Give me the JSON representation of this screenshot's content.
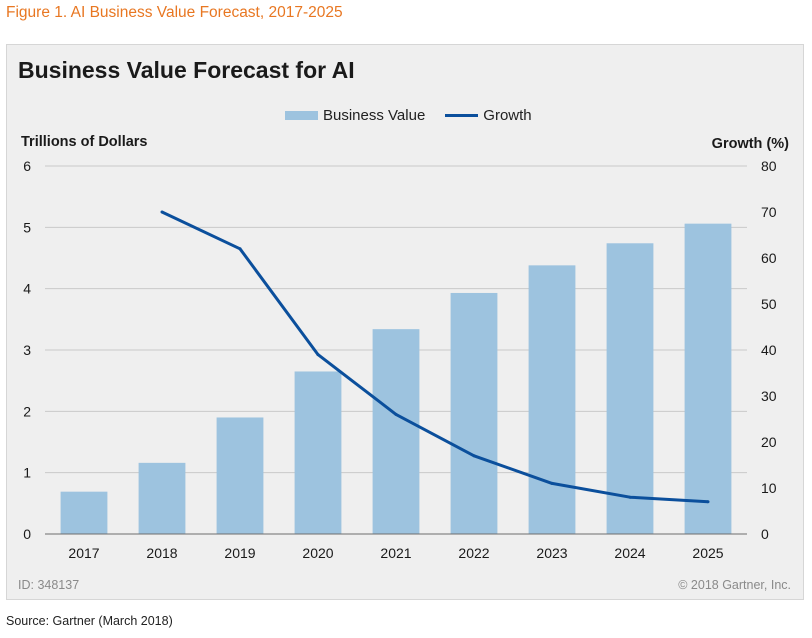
{
  "figure_caption": "Figure 1. AI Business Value Forecast, 2017-2025",
  "footer": {
    "id_text": "ID: 348137",
    "copyright": "© 2018 Gartner, Inc.",
    "source": "Source: Gartner (March 2018)"
  },
  "colors": {
    "bar": "#9dc3df",
    "line": "#0b4f9c",
    "caption": "#e87722",
    "panel": "#efefef"
  },
  "chart_data": {
    "type": "bar",
    "title": "Business Value Forecast for AI",
    "ylabel": "Trillions of Dollars",
    "y2label": "Growth (%)",
    "xlabel": "",
    "legend_position": "top-center",
    "categories": [
      "2017",
      "2018",
      "2019",
      "2020",
      "2021",
      "2022",
      "2023",
      "2024",
      "2025"
    ],
    "series": [
      {
        "name": "Business Value",
        "kind": "bar",
        "axis": "left",
        "values": [
          0.69,
          1.16,
          1.9,
          2.65,
          3.34,
          3.93,
          4.38,
          4.74,
          5.06
        ]
      },
      {
        "name": "Growth",
        "kind": "line",
        "axis": "right",
        "values": [
          null,
          70,
          62,
          39,
          26,
          17,
          11,
          8,
          7
        ]
      }
    ],
    "ylim": [
      0,
      6
    ],
    "yticks": [
      0,
      1,
      2,
      3,
      4,
      5,
      6
    ],
    "y2lim": [
      0,
      80
    ],
    "y2ticks": [
      0,
      10,
      20,
      30,
      40,
      50,
      60,
      70,
      80
    ],
    "grid": true
  }
}
